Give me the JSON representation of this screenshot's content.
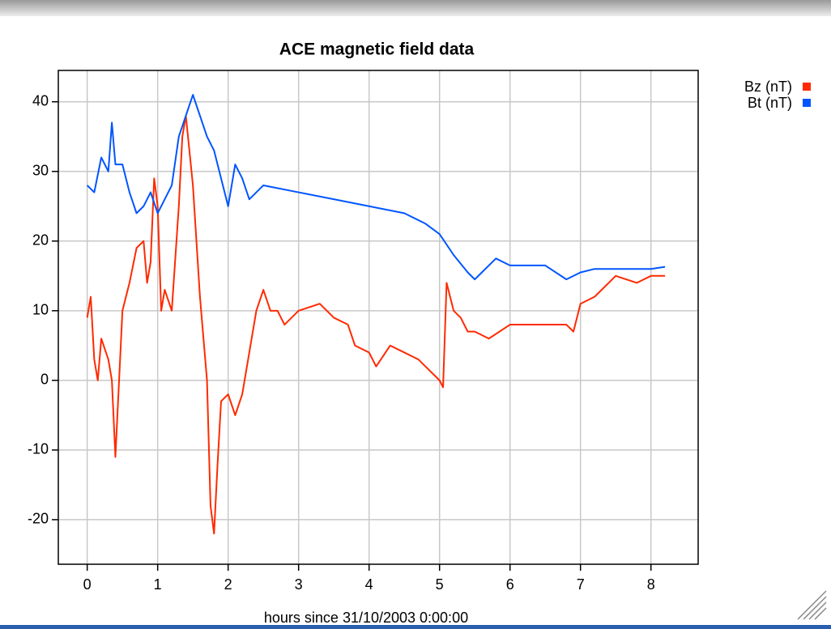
{
  "chart_data": {
    "type": "line",
    "title": "ACE magnetic field data",
    "xlabel": "hours since 31/10/2003 0:00:00",
    "xlim": [
      -0.41,
      8.67
    ],
    "ylim": [
      -26.4,
      44.5
    ],
    "xticks": [
      0,
      1,
      2,
      3,
      4,
      5,
      6,
      7,
      8
    ],
    "yticks": [
      -20,
      -10,
      0,
      10,
      20,
      30,
      40
    ],
    "grid": true,
    "legend": "right",
    "series": [
      {
        "name": "Bz (nT)",
        "color": "#ff2a00",
        "x": [
          0,
          0.05,
          0.1,
          0.15,
          0.2,
          0.3,
          0.35,
          0.4,
          0.5,
          0.6,
          0.7,
          0.8,
          0.85,
          0.9,
          0.95,
          1.0,
          1.05,
          1.1,
          1.2,
          1.3,
          1.35,
          1.4,
          1.5,
          1.6,
          1.7,
          1.75,
          1.8,
          1.85,
          1.9,
          2.0,
          2.1,
          2.2,
          2.3,
          2.4,
          2.5,
          2.6,
          2.7,
          2.8,
          3.0,
          3.3,
          3.5,
          3.7,
          3.8,
          4.0,
          4.1,
          4.3,
          4.5,
          4.7,
          5.0,
          5.05,
          5.1,
          5.2,
          5.3,
          5.4,
          5.5,
          5.7,
          6.0,
          6.3,
          6.5,
          6.8,
          6.9,
          7.0,
          7.2,
          7.5,
          7.8,
          8.0,
          8.2
        ],
        "values": [
          9,
          12,
          3,
          0,
          6,
          3,
          0,
          -11,
          10,
          14,
          19,
          20,
          14,
          17,
          29,
          25,
          10,
          13,
          10,
          25,
          35,
          38,
          28,
          12,
          0,
          -18,
          -22,
          -12,
          -3,
          -2,
          -5,
          -2,
          4,
          10,
          13,
          10,
          10,
          8,
          10,
          11,
          9,
          8,
          5,
          4,
          2,
          5,
          4,
          3,
          0,
          -1,
          14,
          10,
          9,
          7,
          7,
          6,
          8,
          8,
          8,
          8,
          7,
          11,
          12,
          15,
          14,
          15,
          15
        ]
      },
      {
        "name": "Bt (nT)",
        "color": "#0055ff",
        "x": [
          0,
          0.1,
          0.2,
          0.3,
          0.35,
          0.4,
          0.5,
          0.6,
          0.7,
          0.8,
          0.9,
          1.0,
          1.1,
          1.2,
          1.3,
          1.4,
          1.5,
          1.6,
          1.7,
          1.8,
          1.9,
          2.0,
          2.1,
          2.2,
          2.3,
          2.4,
          2.5,
          3.0,
          3.5,
          4.0,
          4.5,
          4.8,
          5.0,
          5.2,
          5.4,
          5.5,
          5.6,
          5.8,
          6.0,
          6.5,
          6.8,
          7.0,
          7.2,
          7.5,
          8.0,
          8.2
        ],
        "values": [
          28,
          27,
          32,
          30,
          37,
          31,
          31,
          27,
          24,
          25,
          27,
          24,
          26,
          28,
          35,
          38,
          41,
          38,
          35,
          33,
          29,
          25,
          31,
          29,
          26,
          27,
          28,
          27,
          26,
          25,
          24,
          22.5,
          21,
          18,
          15.5,
          14.5,
          15.5,
          17.5,
          16.5,
          16.5,
          14.5,
          15.5,
          16,
          16,
          16,
          16.3
        ]
      }
    ]
  }
}
